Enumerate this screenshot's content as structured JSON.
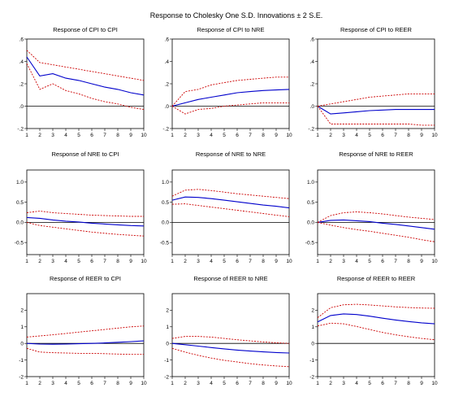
{
  "figure": {
    "title": "Response to Cholesky One S.D. Innovations ± 2 S.E."
  },
  "colors": {
    "response": "#0000cc",
    "bands": "#cc0000",
    "zero_line": "#000000",
    "frame": "#000000"
  },
  "chart_data": [
    {
      "type": "line",
      "title": "Response of CPI to CPI",
      "x": [
        1,
        2,
        3,
        4,
        5,
        6,
        7,
        8,
        9,
        10
      ],
      "ylim": [
        -0.2,
        0.6
      ],
      "yticks": [
        -0.2,
        0.0,
        0.2,
        0.4,
        0.6
      ],
      "ytick_labels": [
        "-.2",
        ".0",
        ".2",
        ".4",
        ".6"
      ],
      "series": [
        {
          "role": "response",
          "values": [
            0.44,
            0.27,
            0.29,
            0.25,
            0.23,
            0.2,
            0.17,
            0.15,
            0.12,
            0.1
          ]
        },
        {
          "role": "upper",
          "values": [
            0.5,
            0.39,
            0.37,
            0.35,
            0.33,
            0.31,
            0.29,
            0.27,
            0.25,
            0.23
          ]
        },
        {
          "role": "lower",
          "values": [
            0.38,
            0.15,
            0.2,
            0.14,
            0.11,
            0.07,
            0.04,
            0.02,
            -0.01,
            -0.03
          ]
        }
      ]
    },
    {
      "type": "line",
      "title": "Response of CPI to NRE",
      "x": [
        1,
        2,
        3,
        4,
        5,
        6,
        7,
        8,
        9,
        10
      ],
      "ylim": [
        -0.2,
        0.6
      ],
      "yticks": [
        -0.2,
        0.0,
        0.2,
        0.4,
        0.6
      ],
      "ytick_labels": [
        "-.2",
        ".0",
        ".2",
        ".4",
        ".6"
      ],
      "series": [
        {
          "role": "response",
          "values": [
            0.0,
            0.03,
            0.06,
            0.08,
            0.1,
            0.12,
            0.13,
            0.14,
            0.145,
            0.15
          ]
        },
        {
          "role": "upper",
          "values": [
            0.0,
            0.13,
            0.15,
            0.19,
            0.21,
            0.23,
            0.24,
            0.25,
            0.26,
            0.26
          ]
        },
        {
          "role": "lower",
          "values": [
            0.0,
            -0.07,
            -0.03,
            -0.02,
            0.0,
            0.01,
            0.02,
            0.03,
            0.03,
            0.03
          ]
        }
      ]
    },
    {
      "type": "line",
      "title": "Response of CPI to REER",
      "x": [
        1,
        2,
        3,
        4,
        5,
        6,
        7,
        8,
        9,
        10
      ],
      "ylim": [
        -0.2,
        0.6
      ],
      "yticks": [
        -0.2,
        0.0,
        0.2,
        0.4,
        0.6
      ],
      "ytick_labels": [
        "-.2",
        ".0",
        ".2",
        ".4",
        ".6"
      ],
      "series": [
        {
          "role": "response",
          "values": [
            0.0,
            -0.07,
            -0.06,
            -0.05,
            -0.04,
            -0.035,
            -0.03,
            -0.03,
            -0.03,
            -0.03
          ]
        },
        {
          "role": "upper",
          "values": [
            0.0,
            0.02,
            0.04,
            0.06,
            0.08,
            0.09,
            0.1,
            0.11,
            0.11,
            0.11
          ]
        },
        {
          "role": "lower",
          "values": [
            0.0,
            -0.16,
            -0.16,
            -0.16,
            -0.16,
            -0.16,
            -0.16,
            -0.16,
            -0.17,
            -0.17
          ]
        }
      ]
    },
    {
      "type": "line",
      "title": "Response of NRE to CPI",
      "x": [
        1,
        2,
        3,
        4,
        5,
        6,
        7,
        8,
        9,
        10
      ],
      "ylim": [
        -0.8,
        1.3
      ],
      "yticks": [
        -0.5,
        0.0,
        0.5,
        1.0
      ],
      "ytick_labels": [
        "-0.5",
        "0.0",
        "0.5",
        "1.0"
      ],
      "series": [
        {
          "role": "response",
          "values": [
            0.12,
            0.1,
            0.06,
            0.03,
            0.01,
            -0.02,
            -0.04,
            -0.06,
            -0.08,
            -0.09
          ]
        },
        {
          "role": "upper",
          "values": [
            0.24,
            0.28,
            0.24,
            0.22,
            0.2,
            0.18,
            0.17,
            0.16,
            0.15,
            0.15
          ]
        },
        {
          "role": "lower",
          "values": [
            0.0,
            -0.08,
            -0.12,
            -0.16,
            -0.2,
            -0.24,
            -0.27,
            -0.3,
            -0.32,
            -0.34
          ]
        }
      ]
    },
    {
      "type": "line",
      "title": "Response of NRE to NRE",
      "x": [
        1,
        2,
        3,
        4,
        5,
        6,
        7,
        8,
        9,
        10
      ],
      "ylim": [
        -0.8,
        1.3
      ],
      "yticks": [
        -0.5,
        0.0,
        0.5,
        1.0
      ],
      "ytick_labels": [
        "-0.5",
        "0.0",
        "0.5",
        "1.0"
      ],
      "series": [
        {
          "role": "response",
          "values": [
            0.55,
            0.63,
            0.62,
            0.59,
            0.55,
            0.51,
            0.47,
            0.43,
            0.4,
            0.36
          ]
        },
        {
          "role": "upper",
          "values": [
            0.65,
            0.8,
            0.82,
            0.79,
            0.75,
            0.71,
            0.68,
            0.65,
            0.62,
            0.59
          ]
        },
        {
          "role": "lower",
          "values": [
            0.45,
            0.46,
            0.42,
            0.38,
            0.34,
            0.3,
            0.26,
            0.22,
            0.18,
            0.14
          ]
        }
      ]
    },
    {
      "type": "line",
      "title": "Response of NRE to REER",
      "x": [
        1,
        2,
        3,
        4,
        5,
        6,
        7,
        8,
        9,
        10
      ],
      "ylim": [
        -0.8,
        1.3
      ],
      "yticks": [
        -0.5,
        0.0,
        0.5,
        1.0
      ],
      "ytick_labels": [
        "-0.5",
        "0.0",
        "0.5",
        "1.0"
      ],
      "series": [
        {
          "role": "response",
          "values": [
            0.0,
            0.05,
            0.06,
            0.04,
            0.02,
            -0.02,
            -0.05,
            -0.09,
            -0.13,
            -0.17
          ]
        },
        {
          "role": "upper",
          "values": [
            0.0,
            0.17,
            0.24,
            0.26,
            0.24,
            0.21,
            0.17,
            0.13,
            0.1,
            0.07
          ]
        },
        {
          "role": "lower",
          "values": [
            0.0,
            -0.07,
            -0.13,
            -0.18,
            -0.22,
            -0.27,
            -0.32,
            -0.37,
            -0.43,
            -0.48
          ]
        }
      ]
    },
    {
      "type": "line",
      "title": "Response of REER to CPI",
      "x": [
        1,
        2,
        3,
        4,
        5,
        6,
        7,
        8,
        9,
        10
      ],
      "ylim": [
        -2,
        3
      ],
      "yticks": [
        -2,
        -1,
        0,
        1,
        2
      ],
      "ytick_labels": [
        "-2",
        "-1",
        "0",
        "1",
        "2"
      ],
      "series": [
        {
          "role": "response",
          "values": [
            0.0,
            -0.04,
            -0.05,
            -0.04,
            -0.02,
            0.0,
            0.03,
            0.07,
            0.11,
            0.15
          ]
        },
        {
          "role": "upper",
          "values": [
            0.38,
            0.45,
            0.52,
            0.6,
            0.68,
            0.76,
            0.84,
            0.92,
            1.0,
            1.05
          ]
        },
        {
          "role": "lower",
          "values": [
            -0.3,
            -0.52,
            -0.56,
            -0.58,
            -0.6,
            -0.6,
            -0.62,
            -0.64,
            -0.66,
            -0.66
          ]
        }
      ]
    },
    {
      "type": "line",
      "title": "Response of REER to NRE",
      "x": [
        1,
        2,
        3,
        4,
        5,
        6,
        7,
        8,
        9,
        10
      ],
      "ylim": [
        -2,
        3
      ],
      "yticks": [
        -2,
        -1,
        0,
        1,
        2
      ],
      "ytick_labels": [
        "-2",
        "-1",
        "0",
        "1",
        "2"
      ],
      "series": [
        {
          "role": "response",
          "values": [
            0.0,
            -0.08,
            -0.16,
            -0.25,
            -0.33,
            -0.4,
            -0.46,
            -0.51,
            -0.55,
            -0.58
          ]
        },
        {
          "role": "upper",
          "values": [
            0.3,
            0.42,
            0.42,
            0.38,
            0.3,
            0.22,
            0.15,
            0.09,
            0.04,
            0.0
          ]
        },
        {
          "role": "lower",
          "values": [
            -0.3,
            -0.52,
            -0.72,
            -0.88,
            -1.02,
            -1.12,
            -1.22,
            -1.3,
            -1.36,
            -1.4
          ]
        }
      ]
    },
    {
      "type": "line",
      "title": "Response of REER to REER",
      "x": [
        1,
        2,
        3,
        4,
        5,
        6,
        7,
        8,
        9,
        10
      ],
      "ylim": [
        -2,
        3
      ],
      "yticks": [
        -2,
        -1,
        0,
        1,
        2
      ],
      "ytick_labels": [
        "-2",
        "-1",
        "0",
        "1",
        "2"
      ],
      "series": [
        {
          "role": "response",
          "values": [
            1.3,
            1.68,
            1.78,
            1.74,
            1.64,
            1.52,
            1.41,
            1.32,
            1.24,
            1.18
          ]
        },
        {
          "role": "upper",
          "values": [
            1.55,
            2.15,
            2.33,
            2.36,
            2.32,
            2.26,
            2.2,
            2.16,
            2.13,
            2.12
          ]
        },
        {
          "role": "lower",
          "values": [
            1.05,
            1.22,
            1.18,
            1.02,
            0.84,
            0.66,
            0.52,
            0.4,
            0.3,
            0.22
          ]
        }
      ]
    }
  ]
}
